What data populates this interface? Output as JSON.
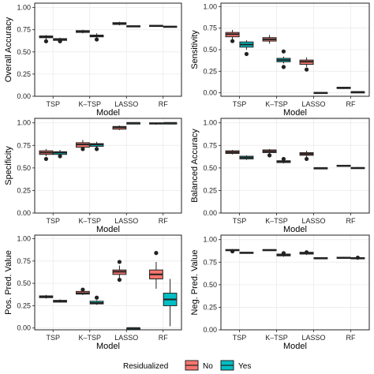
{
  "colors": {
    "no": "#F8766D",
    "yes": "#00BFC4",
    "grid": "#EBEBEB",
    "line": "#222222"
  },
  "legend": {
    "title": "Residualized",
    "items": [
      {
        "label": "No",
        "key": "no"
      },
      {
        "label": "Yes",
        "key": "yes"
      }
    ],
    "position": "bottom"
  },
  "chart_data": [
    {
      "type": "boxplot",
      "xlabel": "Model",
      "ylabel": "Overall Accuracy",
      "categories": [
        "TSP",
        "K–TSP",
        "LASSO",
        "RF"
      ],
      "ylim": [
        0,
        1.05
      ],
      "yticks": [
        0.0,
        0.25,
        0.5,
        0.75,
        1.0
      ],
      "ytick_labels": [
        "0.00",
        "0.25",
        "0.50",
        "0.75",
        "1.00"
      ],
      "series": [
        {
          "key": "no",
          "boxes": [
            {
              "q1": 0.66,
              "median": 0.67,
              "q3": 0.68,
              "lo": 0.64,
              "hi": 0.69,
              "out": [
                0.62
              ]
            },
            {
              "q1": 0.72,
              "median": 0.73,
              "q3": 0.74,
              "lo": 0.71,
              "hi": 0.75,
              "out": []
            },
            {
              "q1": 0.81,
              "median": 0.82,
              "q3": 0.83,
              "lo": 0.8,
              "hi": 0.84,
              "out": []
            },
            {
              "q1": 0.79,
              "median": 0.795,
              "q3": 0.8,
              "lo": 0.79,
              "hi": 0.8,
              "out": []
            }
          ]
        },
        {
          "key": "yes",
          "boxes": [
            {
              "q1": 0.63,
              "median": 0.64,
              "q3": 0.65,
              "lo": 0.62,
              "hi": 0.66,
              "out": [
                0.62
              ]
            },
            {
              "q1": 0.67,
              "median": 0.68,
              "q3": 0.69,
              "lo": 0.66,
              "hi": 0.71,
              "out": [
                0.64
              ]
            },
            {
              "q1": 0.785,
              "median": 0.79,
              "q3": 0.795,
              "lo": 0.78,
              "hi": 0.8,
              "out": []
            },
            {
              "q1": 0.78,
              "median": 0.785,
              "q3": 0.79,
              "lo": 0.78,
              "hi": 0.79,
              "out": []
            }
          ]
        }
      ]
    },
    {
      "type": "boxplot",
      "xlabel": "Model",
      "ylabel": "Sensitivity",
      "categories": [
        "TSP",
        "K–TSP",
        "LASSO",
        "RF"
      ],
      "ylim": [
        -0.04,
        1.04
      ],
      "yticks": [
        0.0,
        0.25,
        0.5,
        0.75,
        1.0
      ],
      "ytick_labels": [
        "0.00",
        "0.25",
        "0.50",
        "0.75",
        "1.00"
      ],
      "series": [
        {
          "key": "no",
          "boxes": [
            {
              "q1": 0.65,
              "median": 0.68,
              "q3": 0.7,
              "lo": 0.62,
              "hi": 0.73,
              "out": [
                0.6
              ]
            },
            {
              "q1": 0.6,
              "median": 0.62,
              "q3": 0.64,
              "lo": 0.57,
              "hi": 0.67,
              "out": []
            },
            {
              "q1": 0.33,
              "median": 0.36,
              "q3": 0.38,
              "lo": 0.3,
              "hi": 0.41,
              "out": [
                0.27
              ]
            },
            {
              "q1": 0.05,
              "median": 0.055,
              "q3": 0.065,
              "lo": 0.045,
              "hi": 0.07,
              "out": []
            }
          ]
        },
        {
          "key": "yes",
          "boxes": [
            {
              "q1": 0.53,
              "median": 0.56,
              "q3": 0.59,
              "lo": 0.5,
              "hi": 0.61,
              "out": [
                0.45
              ]
            },
            {
              "q1": 0.36,
              "median": 0.38,
              "q3": 0.4,
              "lo": 0.34,
              "hi": 0.42,
              "out": [
                0.3,
                0.48
              ]
            },
            {
              "q1": 0.0,
              "median": 0.0,
              "q3": 0.005,
              "lo": 0.0,
              "hi": 0.005,
              "out": []
            },
            {
              "q1": 0.005,
              "median": 0.01,
              "q3": 0.012,
              "lo": 0.005,
              "hi": 0.012,
              "out": []
            }
          ]
        }
      ]
    },
    {
      "type": "boxplot",
      "xlabel": "Model",
      "ylabel": "Specificity",
      "categories": [
        "TSP",
        "K–TSP",
        "LASSO",
        "RF"
      ],
      "ylim": [
        0,
        1.05
      ],
      "yticks": [
        0.0,
        0.25,
        0.5,
        0.75,
        1.0
      ],
      "ytick_labels": [
        "0.00",
        "0.25",
        "0.50",
        "0.75",
        "1.00"
      ],
      "series": [
        {
          "key": "no",
          "boxes": [
            {
              "q1": 0.65,
              "median": 0.67,
              "q3": 0.69,
              "lo": 0.63,
              "hi": 0.71,
              "out": [
                0.6
              ]
            },
            {
              "q1": 0.73,
              "median": 0.76,
              "q3": 0.78,
              "lo": 0.71,
              "hi": 0.81,
              "out": [
                0.71
              ]
            },
            {
              "q1": 0.93,
              "median": 0.95,
              "q3": 0.96,
              "lo": 0.92,
              "hi": 0.97,
              "out": []
            },
            {
              "q1": 0.99,
              "median": 0.995,
              "q3": 1.0,
              "lo": 0.98,
              "hi": 1.0,
              "out": []
            }
          ]
        },
        {
          "key": "yes",
          "boxes": [
            {
              "q1": 0.65,
              "median": 0.67,
              "q3": 0.68,
              "lo": 0.64,
              "hi": 0.7,
              "out": [
                0.63
              ]
            },
            {
              "q1": 0.74,
              "median": 0.76,
              "q3": 0.77,
              "lo": 0.72,
              "hi": 0.79,
              "out": [
                0.71
              ]
            },
            {
              "q1": 0.995,
              "median": 1.0,
              "q3": 1.0,
              "lo": 0.99,
              "hi": 1.0,
              "out": []
            },
            {
              "q1": 0.995,
              "median": 1.0,
              "q3": 1.0,
              "lo": 0.99,
              "hi": 1.0,
              "out": []
            }
          ]
        }
      ]
    },
    {
      "type": "boxplot",
      "xlabel": "Model",
      "ylabel": "Balanced Accuracy",
      "categories": [
        "TSP",
        "K–TSP",
        "LASSO",
        "RF"
      ],
      "ylim": [
        0,
        1.05
      ],
      "yticks": [
        0.0,
        0.25,
        0.5,
        0.75,
        1.0
      ],
      "ytick_labels": [
        "0.00",
        "0.25",
        "0.50",
        "0.75",
        "1.00"
      ],
      "series": [
        {
          "key": "no",
          "boxes": [
            {
              "q1": 0.66,
              "median": 0.675,
              "q3": 0.69,
              "lo": 0.65,
              "hi": 0.7,
              "out": []
            },
            {
              "q1": 0.67,
              "median": 0.685,
              "q3": 0.7,
              "lo": 0.66,
              "hi": 0.71,
              "out": [
                0.64
              ]
            },
            {
              "q1": 0.64,
              "median": 0.655,
              "q3": 0.67,
              "lo": 0.62,
              "hi": 0.69,
              "out": [
                0.6
              ]
            },
            {
              "q1": 0.52,
              "median": 0.525,
              "q3": 0.53,
              "lo": 0.52,
              "hi": 0.53,
              "out": []
            }
          ]
        },
        {
          "key": "yes",
          "boxes": [
            {
              "q1": 0.6,
              "median": 0.615,
              "q3": 0.63,
              "lo": 0.59,
              "hi": 0.64,
              "out": []
            },
            {
              "q1": 0.56,
              "median": 0.57,
              "q3": 0.58,
              "lo": 0.55,
              "hi": 0.6,
              "out": [
                0.6
              ]
            },
            {
              "q1": 0.5,
              "median": 0.5,
              "q3": 0.502,
              "lo": 0.5,
              "hi": 0.502,
              "out": []
            },
            {
              "q1": 0.495,
              "median": 0.5,
              "q3": 0.505,
              "lo": 0.49,
              "hi": 0.51,
              "out": []
            }
          ]
        }
      ]
    },
    {
      "type": "boxplot",
      "xlabel": "Model",
      "ylabel": "Pos. Pred. Value",
      "categories": [
        "TSP",
        "K–TSP",
        "LASSO",
        "RF"
      ],
      "ylim": [
        -0.02,
        1.04
      ],
      "yticks": [
        0.0,
        0.25,
        0.5,
        0.75,
        1.0
      ],
      "ytick_labels": [
        "0.00",
        "0.25",
        "0.50",
        "0.75",
        "1.00"
      ],
      "series": [
        {
          "key": "no",
          "boxes": [
            {
              "q1": 0.34,
              "median": 0.35,
              "q3": 0.36,
              "lo": 0.33,
              "hi": 0.37,
              "out": []
            },
            {
              "q1": 0.38,
              "median": 0.39,
              "q3": 0.41,
              "lo": 0.37,
              "hi": 0.42,
              "out": [
                0.43
              ]
            },
            {
              "q1": 0.6,
              "median": 0.63,
              "q3": 0.65,
              "lo": 0.56,
              "hi": 0.7,
              "out": [
                0.54,
                0.74
              ]
            },
            {
              "q1": 0.55,
              "median": 0.6,
              "q3": 0.65,
              "lo": 0.44,
              "hi": 0.74,
              "out": [
                0.84
              ]
            }
          ]
        },
        {
          "key": "yes",
          "boxes": [
            {
              "q1": 0.29,
              "median": 0.3,
              "q3": 0.31,
              "lo": 0.285,
              "hi": 0.32,
              "out": []
            },
            {
              "q1": 0.27,
              "median": 0.28,
              "q3": 0.3,
              "lo": 0.26,
              "hi": 0.31,
              "out": [
                0.34
              ]
            },
            {
              "q1": 0.0,
              "median": 0.0,
              "q3": 0.0,
              "lo": 0.0,
              "hi": 0.0,
              "out": []
            },
            {
              "q1": 0.25,
              "median": 0.32,
              "q3": 0.39,
              "lo": 0.02,
              "hi": 0.55,
              "out": []
            }
          ]
        }
      ]
    },
    {
      "type": "boxplot",
      "xlabel": "Model",
      "ylabel": "Neg. Pred. Value",
      "categories": [
        "TSP",
        "K–TSP",
        "LASSO",
        "RF"
      ],
      "ylim": [
        0,
        1.05
      ],
      "yticks": [
        0.0,
        0.25,
        0.5,
        0.75,
        1.0
      ],
      "ytick_labels": [
        "0.00",
        "0.25",
        "0.50",
        "0.75",
        "1.00"
      ],
      "series": [
        {
          "key": "no",
          "boxes": [
            {
              "q1": 0.88,
              "median": 0.885,
              "q3": 0.89,
              "lo": 0.875,
              "hi": 0.895,
              "out": [
                0.87
              ]
            },
            {
              "q1": 0.88,
              "median": 0.885,
              "q3": 0.89,
              "lo": 0.875,
              "hi": 0.89,
              "out": []
            },
            {
              "q1": 0.84,
              "median": 0.85,
              "q3": 0.86,
              "lo": 0.83,
              "hi": 0.87,
              "out": [
                0.86
              ]
            },
            {
              "q1": 0.8,
              "median": 0.8,
              "q3": 0.805,
              "lo": 0.795,
              "hi": 0.81,
              "out": []
            }
          ]
        },
        {
          "key": "yes",
          "boxes": [
            {
              "q1": 0.85,
              "median": 0.855,
              "q3": 0.86,
              "lo": 0.845,
              "hi": 0.865,
              "out": []
            },
            {
              "q1": 0.82,
              "median": 0.83,
              "q3": 0.84,
              "lo": 0.81,
              "hi": 0.845,
              "out": [
                0.85
              ]
            },
            {
              "q1": 0.79,
              "median": 0.795,
              "q3": 0.8,
              "lo": 0.79,
              "hi": 0.8,
              "out": []
            },
            {
              "q1": 0.79,
              "median": 0.795,
              "q3": 0.8,
              "lo": 0.785,
              "hi": 0.8,
              "out": [
                0.8
              ]
            }
          ]
        }
      ]
    }
  ]
}
